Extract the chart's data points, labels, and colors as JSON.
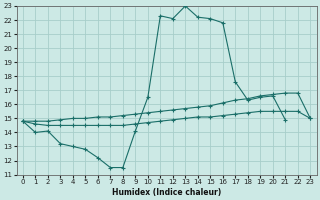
{
  "xlabel": "Humidex (Indice chaleur)",
  "xlim": [
    -0.5,
    23.5
  ],
  "ylim": [
    11,
    23
  ],
  "bg_color": "#cce9e5",
  "grid_color": "#a8ceca",
  "line_color": "#1a6e68",
  "xticks": [
    0,
    1,
    2,
    3,
    4,
    5,
    6,
    7,
    8,
    9,
    10,
    11,
    12,
    13,
    14,
    15,
    16,
    17,
    18,
    19,
    20,
    21,
    22,
    23
  ],
  "yticks": [
    11,
    12,
    13,
    14,
    15,
    16,
    17,
    18,
    19,
    20,
    21,
    22,
    23
  ],
  "curve1_x": [
    0,
    1,
    2,
    3,
    4,
    5,
    6,
    7,
    8,
    9,
    10,
    11,
    12,
    13,
    14,
    15,
    16,
    17,
    18,
    19,
    20,
    21
  ],
  "curve1_y": [
    14.8,
    14.0,
    14.1,
    13.2,
    13.0,
    12.8,
    12.2,
    11.5,
    11.5,
    14.1,
    16.5,
    22.3,
    22.1,
    23.0,
    22.2,
    22.1,
    21.8,
    17.6,
    16.3,
    16.5,
    16.6,
    14.9
  ],
  "curve2_x": [
    0,
    1,
    2,
    3,
    4,
    5,
    6,
    7,
    8,
    9,
    10,
    11,
    12,
    13,
    14,
    15,
    16,
    17,
    18,
    19,
    20,
    21,
    22,
    23
  ],
  "curve2_y": [
    14.8,
    14.8,
    14.8,
    14.9,
    15.0,
    15.0,
    15.1,
    15.1,
    15.2,
    15.3,
    15.4,
    15.5,
    15.6,
    15.7,
    15.8,
    15.9,
    16.1,
    16.3,
    16.4,
    16.6,
    16.7,
    16.8,
    16.8,
    15.0
  ],
  "curve3_x": [
    0,
    1,
    2,
    3,
    4,
    5,
    6,
    7,
    8,
    9,
    10,
    11,
    12,
    13,
    14,
    15,
    16,
    17,
    18,
    19,
    20,
    21,
    22,
    23
  ],
  "curve3_y": [
    14.8,
    14.6,
    14.5,
    14.5,
    14.5,
    14.5,
    14.5,
    14.5,
    14.5,
    14.6,
    14.7,
    14.8,
    14.9,
    15.0,
    15.1,
    15.1,
    15.2,
    15.3,
    15.4,
    15.5,
    15.5,
    15.5,
    15.5,
    15.0
  ]
}
